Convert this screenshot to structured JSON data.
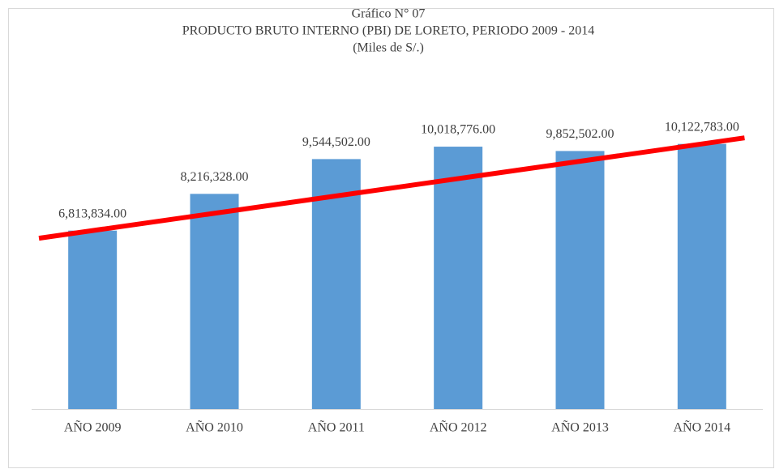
{
  "chart_data": {
    "type": "bar",
    "title": "Gráfico N° 07",
    "subtitle": "PRODUCTO BRUTO INTERNO (PBI) DE LORETO, PERIODO 2009 - 2014",
    "unit_label": "(Miles de S/.)",
    "categories": [
      "AÑO 2009",
      "AÑO 2010",
      "AÑO 2011",
      "AÑO 2012",
      "AÑO 2013",
      "AÑO 2014"
    ],
    "values": [
      6813834,
      8216328,
      9544502,
      10018776,
      9852502,
      10122783
    ],
    "value_labels": [
      "6,813,834.00",
      "8,216,328.00",
      "9,544,502.00",
      "10,018,776.00",
      "9,852,502.00",
      "10,122,783.00"
    ],
    "color": "#5b9bd5",
    "trendline_color": "#ff0000",
    "ylim": [
      0,
      12000000
    ]
  }
}
